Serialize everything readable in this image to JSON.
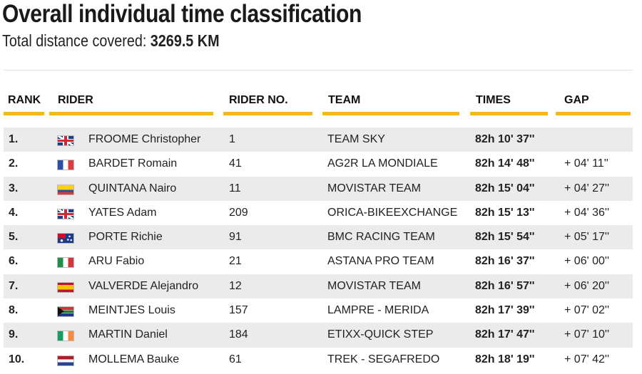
{
  "page": {
    "title": "Overall individual time classification",
    "distance_label": "Total distance covered: ",
    "distance_value": "3269.5 KM"
  },
  "table": {
    "headers": {
      "rank": "RANK",
      "rider": "RIDER",
      "rider_no": "RIDER NO.",
      "team": "TEAM",
      "times": "TIMES",
      "gap": "GAP"
    },
    "rows": [
      {
        "rank": "1.",
        "flag": "flag-gb",
        "rider": "FROOME Christopher",
        "no": "1",
        "team": "TEAM SKY",
        "time": "82h 10' 37''",
        "gap": ""
      },
      {
        "rank": "2.",
        "flag": "flag-fr",
        "rider": "BARDET Romain",
        "no": "41",
        "team": "AG2R LA MONDIALE",
        "time": "82h 14' 48''",
        "gap": "+ 04' 11''"
      },
      {
        "rank": "3.",
        "flag": "flag-co",
        "rider": "QUINTANA Nairo",
        "no": "11",
        "team": "MOVISTAR TEAM",
        "time": "82h 15' 04''",
        "gap": "+ 04' 27''"
      },
      {
        "rank": "4.",
        "flag": "flag-gb",
        "rider": "YATES Adam",
        "no": "209",
        "team": "ORICA-BIKEEXCHANGE",
        "time": "82h 15' 13''",
        "gap": "+ 04' 36''"
      },
      {
        "rank": "5.",
        "flag": "flag-au",
        "rider": "PORTE Richie",
        "no": "91",
        "team": "BMC RACING TEAM",
        "time": "82h 15' 54''",
        "gap": "+ 05' 17''"
      },
      {
        "rank": "6.",
        "flag": "flag-it",
        "rider": "ARU Fabio",
        "no": "21",
        "team": "ASTANA PRO TEAM",
        "time": "82h 16' 37''",
        "gap": "+ 06' 00''"
      },
      {
        "rank": "7.",
        "flag": "flag-es",
        "rider": "VALVERDE Alejandro",
        "no": "12",
        "team": "MOVISTAR TEAM",
        "time": "82h 16' 57''",
        "gap": "+ 06' 20''"
      },
      {
        "rank": "8.",
        "flag": "flag-za",
        "rider": "MEINTJES Louis",
        "no": "157",
        "team": "LAMPRE - MERIDA",
        "time": "82h 17' 39''",
        "gap": "+ 07' 02''"
      },
      {
        "rank": "9.",
        "flag": "flag-ie",
        "rider": "MARTIN Daniel",
        "no": "184",
        "team": "ETIXX-QUICK STEP",
        "time": "82h 17' 47''",
        "gap": "+ 07' 10''"
      },
      {
        "rank": "10.",
        "flag": "flag-nl",
        "rider": "MOLLEMA Bauke",
        "no": "61",
        "team": "TREK - SEGAFREDO",
        "time": "82h 18' 19''",
        "gap": "+ 07' 42''"
      }
    ]
  },
  "colors": {
    "accent": "#f7b91a",
    "row_alt": "#ebebeb"
  }
}
